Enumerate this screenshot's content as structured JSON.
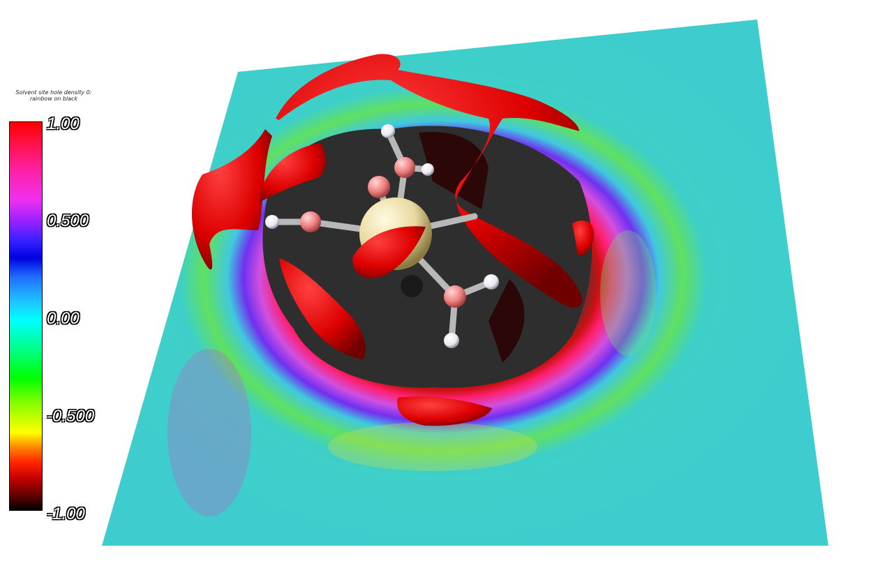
{
  "legend": {
    "title_line1": "Solvent site hole density 0:",
    "title_line2": "rainbow on black",
    "ticks": [
      "1.00",
      "0.500",
      "0.00",
      "-0.500",
      "-1.00"
    ]
  },
  "colors": {
    "isosurface": "#e00000",
    "plane_base": "#3ecfcf",
    "central_atom": "#e8d9a0",
    "oxygen": "#f08080",
    "hydrogen": "#f2f2f6",
    "bond": "#b8b8b8"
  },
  "icons": [
    "molecule-ball-stick",
    "isosurface-lobes",
    "slice-plane"
  ]
}
